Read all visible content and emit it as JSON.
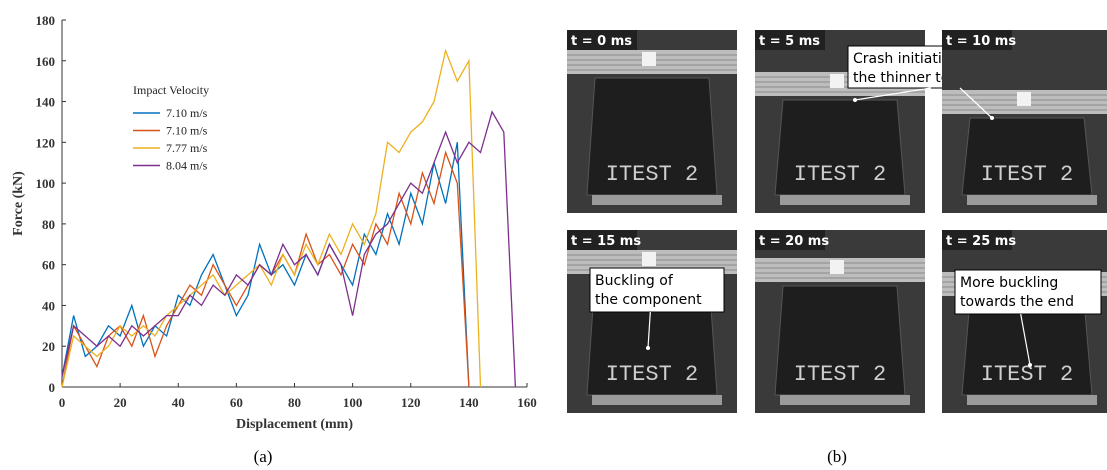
{
  "chart_data": {
    "type": "line",
    "xlabel": "Displacement (mm)",
    "ylabel": "Force (kN)",
    "legend_title": "Impact Velocity",
    "x": [
      0,
      4,
      8,
      12,
      16,
      20,
      24,
      28,
      32,
      36,
      40,
      44,
      48,
      52,
      56,
      60,
      64,
      68,
      72,
      76,
      80,
      84,
      88,
      92,
      96,
      100,
      104,
      108,
      112,
      116,
      120,
      124,
      128,
      132,
      136,
      140,
      144,
      148,
      152,
      156
    ],
    "series": [
      {
        "name": "7.10 m/s",
        "color": "#0072bd",
        "values": [
          5,
          35,
          15,
          20,
          30,
          25,
          40,
          20,
          30,
          25,
          45,
          40,
          55,
          65,
          50,
          35,
          45,
          70,
          55,
          60,
          50,
          65,
          55,
          70,
          60,
          50,
          75,
          65,
          85,
          70,
          95,
          80,
          110,
          90,
          120,
          0,
          null,
          null,
          null,
          null
        ]
      },
      {
        "name": "7.10 m/s",
        "color": "#d95319",
        "values": [
          0,
          30,
          20,
          10,
          25,
          30,
          20,
          35,
          15,
          30,
          40,
          50,
          45,
          60,
          50,
          40,
          50,
          60,
          55,
          65,
          55,
          75,
          60,
          65,
          55,
          70,
          60,
          80,
          70,
          95,
          80,
          105,
          90,
          115,
          100,
          0,
          null,
          null,
          null,
          null
        ]
      },
      {
        "name": "7.77 m/s",
        "color": "#edb120",
        "values": [
          0,
          25,
          20,
          15,
          20,
          30,
          25,
          30,
          25,
          35,
          40,
          45,
          50,
          55,
          45,
          50,
          55,
          60,
          50,
          65,
          55,
          70,
          60,
          75,
          65,
          80,
          70,
          85,
          120,
          115,
          125,
          130,
          140,
          165,
          150,
          160,
          0,
          null,
          null,
          null
        ]
      },
      {
        "name": "8.04 m/s",
        "color": "#7e2f8e",
        "values": [
          5,
          30,
          25,
          20,
          25,
          20,
          30,
          25,
          30,
          35,
          35,
          45,
          40,
          50,
          45,
          55,
          50,
          60,
          55,
          70,
          60,
          65,
          55,
          70,
          60,
          35,
          65,
          75,
          80,
          90,
          100,
          95,
          110,
          125,
          110,
          120,
          115,
          135,
          125,
          0
        ]
      }
    ],
    "xlim": [
      0,
      160
    ],
    "xticks": [
      0,
      20,
      40,
      60,
      80,
      100,
      120,
      140,
      160
    ],
    "ylim": [
      0,
      180
    ],
    "yticks": [
      0,
      20,
      40,
      60,
      80,
      100,
      120,
      140,
      160,
      180
    ]
  },
  "captions": [
    "(a)",
    "(b)"
  ],
  "photo_marking": "ITEST 2",
  "frames": [
    {
      "label": "t = 0 ms"
    },
    {
      "label": "t = 5 ms",
      "annotation": [
        "Crash initiation from",
        "the thinner top part"
      ]
    },
    {
      "label": "t = 10 ms"
    },
    {
      "label": "t = 15 ms",
      "annotation": [
        "Buckling of",
        "the component"
      ]
    },
    {
      "label": "t = 20 ms"
    },
    {
      "label": "t = 25 ms",
      "annotation": [
        "More buckling",
        "towards the end"
      ]
    }
  ]
}
